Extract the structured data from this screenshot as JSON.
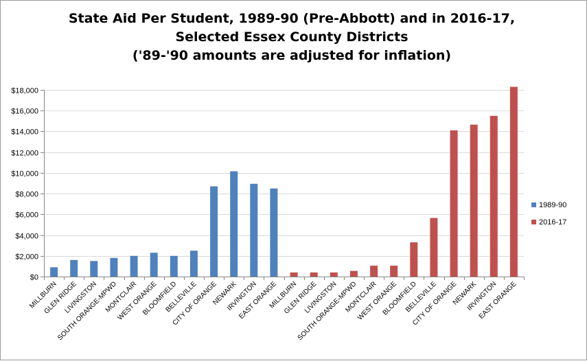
{
  "chart_data": {
    "type": "bar",
    "title": [
      "State Aid Per Student, 1989-90 (Pre-Abbott) and in 2016-17,",
      "Selected Essex County Districts",
      "('89-'90 amounts are adjusted for inflation)"
    ],
    "xlabel": "",
    "ylabel": "",
    "ylim": [
      0,
      18000
    ],
    "yticks": [
      {
        "value": 0,
        "label": "$0"
      },
      {
        "value": 2000,
        "label": "$2,000"
      },
      {
        "value": 4000,
        "label": "$4,000"
      },
      {
        "value": 6000,
        "label": "$6,000"
      },
      {
        "value": 8000,
        "label": "$8,000"
      },
      {
        "value": 10000,
        "label": "$10,000"
      },
      {
        "value": 12000,
        "label": "$12,000"
      },
      {
        "value": 14000,
        "label": "$14,000"
      },
      {
        "value": 16000,
        "label": "$16,000"
      },
      {
        "value": 18000,
        "label": "$18,000"
      }
    ],
    "grid": true,
    "legend_position": "right",
    "categories": [
      "MILLBURN",
      "GLEN RIDGE",
      "LIVINGSTON",
      "SOUTH ORANGE-MPWD",
      "MONTCLAIR",
      "WEST ORANGE",
      "BLOOMFIELD",
      "BELLEVILLE",
      "CITY OF ORANGE",
      "NEWARK",
      "IRVINGTON",
      "EAST ORANGE",
      "MILLBURN",
      "GLEN RIDGE",
      "LIVINGSTON",
      "SOUTH ORANGE-MPWD",
      "MONTCLAIR",
      "WEST ORANGE",
      "BLOOMFIELD",
      "BELLEVILLE",
      "CITY OF ORANGE",
      "NEWARK",
      "IRVINGTON",
      "EAST ORANGE"
    ],
    "series": [
      {
        "name": "1989-90",
        "color": "#4f81bd",
        "values": [
          900,
          1600,
          1500,
          1800,
          2000,
          2300,
          2000,
          2500,
          8700,
          10150,
          8950,
          8500,
          null,
          null,
          null,
          null,
          null,
          null,
          null,
          null,
          null,
          null,
          null,
          null
        ]
      },
      {
        "name": "2016-17",
        "color": "#c0504d",
        "values": [
          null,
          null,
          null,
          null,
          null,
          null,
          null,
          null,
          null,
          null,
          null,
          null,
          400,
          400,
          400,
          550,
          1050,
          1050,
          3300,
          5650,
          14100,
          14650,
          15500,
          18300
        ]
      }
    ]
  }
}
